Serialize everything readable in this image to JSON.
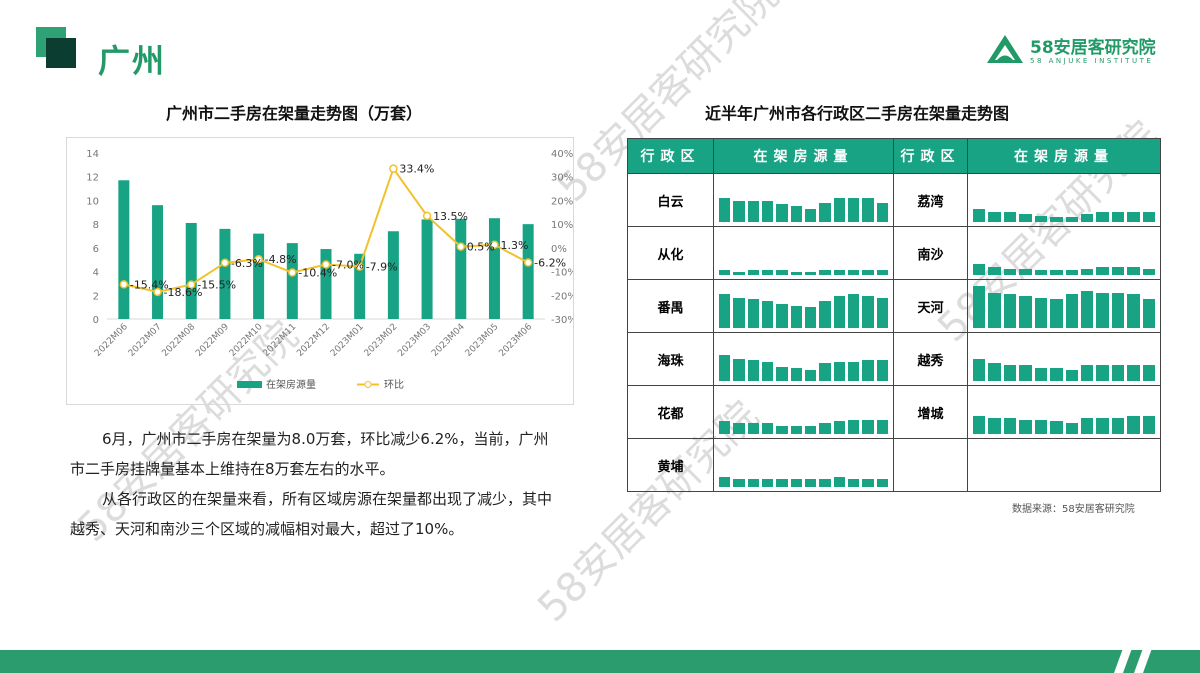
{
  "header": {
    "title": "广州",
    "logo_cn": "58安居客研究院",
    "logo_en": "58 ANJUKE INSTITUTE"
  },
  "watermark": "58安居客研究院",
  "chart_data": {
    "type": "bar+line",
    "title": "广州市二手房在架量走势图（万套）",
    "categories": [
      "2022M06",
      "2022M07",
      "2022M08",
      "2022M09",
      "2022M10",
      "2022M11",
      "2022M12",
      "2023M01",
      "2023M02",
      "2023M03",
      "2023M04",
      "2023M05",
      "2023M06"
    ],
    "series": [
      {
        "name": "在架房源量",
        "type": "bar",
        "axis": "left",
        "color": "#17a384",
        "values": [
          11.7,
          9.6,
          8.1,
          7.6,
          7.2,
          6.4,
          5.9,
          5.5,
          7.4,
          8.4,
          8.45,
          8.5,
          8.0
        ]
      },
      {
        "name": "环比",
        "type": "line",
        "axis": "right",
        "color": "#f2c12e",
        "values": [
          -15.4,
          -18.6,
          -15.5,
          -6.3,
          -4.8,
          -10.4,
          -7.0,
          -7.9,
          33.4,
          13.5,
          0.5,
          1.3,
          -6.2
        ],
        "labels": [
          "-15.4%",
          "-18.6%",
          "-15.5%",
          "-6.3%",
          "-4.8%",
          "-10.4%",
          "-7.0%",
          "-7.9%",
          "33.4%",
          "13.5%",
          "0.5%",
          "1.3%",
          "-6.2%"
        ]
      }
    ],
    "ylim": [
      0,
      14
    ],
    "yticks": [
      "0",
      "2",
      "4",
      "6",
      "8",
      "10",
      "12",
      "14"
    ],
    "y2lim": [
      -30,
      40
    ],
    "y2ticks": [
      "-30%",
      "-20%",
      "-10%",
      "0%",
      "10%",
      "20%",
      "30%",
      "40%"
    ],
    "grid": false,
    "legend": "bottom"
  },
  "paragraphs": [
    "6月，广州市二手房在架量为8.0万套，环比减少6.2%，当前，广州市二手房挂牌量基本上维持在8万套左右的水平。",
    "从各行政区的在架量来看，所有区域房源在架量都出现了减少，其中越秀、天河和南沙三个区域的减幅相对最大，超过了10%。"
  ],
  "table": {
    "title": "近半年广州市各行政区二手房在架量走势图",
    "headers": [
      "行政区",
      "在架房源量",
      "行政区",
      "在架房源量"
    ],
    "rows": [
      [
        {
          "name": "白云",
          "spark": [
            15,
            13,
            13,
            13,
            11,
            10,
            8,
            12,
            15,
            15,
            15,
            12
          ]
        },
        {
          "name": "荔湾",
          "spark": [
            8,
            6,
            6,
            5,
            4,
            3,
            3,
            5,
            6,
            6,
            6,
            6
          ]
        }
      ],
      [
        {
          "name": "从化",
          "spark": [
            3,
            2,
            3,
            3,
            3,
            2,
            2,
            3,
            3,
            3,
            3,
            3
          ]
        },
        {
          "name": "南沙",
          "spark": [
            7,
            5,
            4,
            4,
            3,
            3,
            3,
            4,
            5,
            5,
            5,
            4
          ]
        }
      ],
      [
        {
          "name": "番禺",
          "spark": [
            21,
            19,
            18,
            17,
            15,
            14,
            13,
            17,
            20,
            21,
            20,
            19
          ]
        },
        {
          "name": "天河",
          "spark": [
            26,
            22,
            21,
            20,
            19,
            18,
            21,
            23,
            22,
            22,
            21,
            18
          ]
        }
      ],
      [
        {
          "name": "海珠",
          "spark": [
            16,
            14,
            13,
            12,
            9,
            8,
            7,
            11,
            12,
            12,
            13,
            13
          ]
        },
        {
          "name": "越秀",
          "spark": [
            14,
            11,
            10,
            10,
            8,
            8,
            7,
            10,
            10,
            10,
            10,
            10
          ]
        }
      ],
      [
        {
          "name": "花都",
          "spark": [
            8,
            7,
            7,
            7,
            5,
            5,
            5,
            7,
            8,
            9,
            9,
            9
          ]
        },
        {
          "name": "增城",
          "spark": [
            11,
            10,
            10,
            9,
            9,
            8,
            7,
            10,
            10,
            10,
            11,
            11
          ]
        }
      ],
      [
        {
          "name": "黄埔",
          "spark": [
            6,
            5,
            5,
            5,
            5,
            5,
            5,
            5,
            6,
            5,
            5,
            5
          ]
        },
        null
      ]
    ],
    "source": "数据来源：58安居客研究院"
  }
}
